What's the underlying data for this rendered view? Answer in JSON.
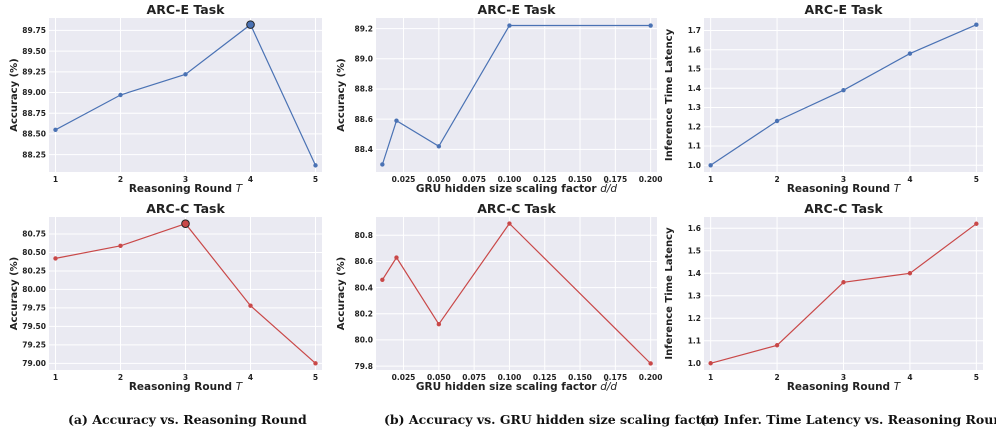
{
  "colors": {
    "blue": "#4a72b4",
    "red": "#c94848",
    "panel_bg": "#eaeaf2",
    "grid": "#ffffff"
  },
  "captions": [
    "(a)  Accuracy vs. Reasoning Round",
    "(b)  Accuracy vs. GRU hidden size scaling factor",
    "(c)  Infer. Time Latency vs. Reasoning Round"
  ],
  "chart_data": [
    {
      "id": "a-top",
      "type": "line",
      "title": "ARC-E Task",
      "xlabel": "Reasoning Round T",
      "ylabel": "Accuracy (%)",
      "x": [
        1,
        2,
        3,
        4,
        5
      ],
      "values": [
        88.55,
        88.97,
        89.22,
        89.82,
        88.12
      ],
      "xlim": [
        0.9,
        5.1
      ],
      "ylim": [
        88.04,
        89.9
      ],
      "xticks": [
        "1",
        "2",
        "3",
        "4",
        "5"
      ],
      "yticks": [
        "88.25",
        "88.50",
        "88.75",
        "89.00",
        "89.25",
        "89.50",
        "89.75"
      ],
      "highlight_index": 3,
      "color": "blue"
    },
    {
      "id": "b-top",
      "type": "line",
      "title": "ARC-E Task",
      "xlabel": "GRU hidden size scaling factor d̃/d",
      "ylabel": "Accuracy (%)",
      "x": [
        0.01,
        0.02,
        0.05,
        0.1,
        0.2
      ],
      "values": [
        88.3,
        88.59,
        88.42,
        89.22,
        89.22
      ],
      "xlim": [
        0.0055,
        0.2045
      ],
      "ylim": [
        88.25,
        89.27
      ],
      "xticks": [
        "0.025",
        "0.050",
        "0.075",
        "0.100",
        "0.125",
        "0.150",
        "0.175",
        "0.200"
      ],
      "yticks": [
        "88.4",
        "88.6",
        "88.8",
        "89.0",
        "89.2"
      ],
      "color": "blue"
    },
    {
      "id": "c-top",
      "type": "line",
      "title": "ARC-E Task",
      "xlabel": "Reasoning Round T",
      "ylabel": "Inference Time Latency",
      "x": [
        1,
        2,
        3,
        4,
        5
      ],
      "values": [
        1.0,
        1.23,
        1.39,
        1.58,
        1.73
      ],
      "xlim": [
        0.9,
        5.1
      ],
      "ylim": [
        0.965,
        1.765
      ],
      "xticks": [
        "1",
        "2",
        "3",
        "4",
        "5"
      ],
      "yticks": [
        "1.0",
        "1.1",
        "1.2",
        "1.3",
        "1.4",
        "1.5",
        "1.6",
        "1.7"
      ],
      "color": "blue"
    },
    {
      "id": "a-bot",
      "type": "line",
      "title": "ARC-C Task",
      "xlabel": "Reasoning Round T",
      "ylabel": "Accuracy (%)",
      "x": [
        1,
        2,
        3,
        4,
        5
      ],
      "values": [
        80.42,
        80.59,
        80.89,
        79.78,
        79.0
      ],
      "xlim": [
        0.9,
        5.1
      ],
      "ylim": [
        78.91,
        80.98
      ],
      "xticks": [
        "1",
        "2",
        "3",
        "4",
        "5"
      ],
      "yticks": [
        "79.00",
        "79.25",
        "79.50",
        "79.75",
        "80.00",
        "80.25",
        "80.50",
        "80.75"
      ],
      "highlight_index": 2,
      "color": "red"
    },
    {
      "id": "b-bot",
      "type": "line",
      "title": "ARC-C Task",
      "xlabel": "GRU hidden size scaling factor d̃/d",
      "ylabel": "Accuracy (%)",
      "x": [
        0.01,
        0.02,
        0.05,
        0.1,
        0.2
      ],
      "values": [
        80.46,
        80.63,
        80.12,
        80.89,
        79.82
      ],
      "xlim": [
        0.0055,
        0.2045
      ],
      "ylim": [
        79.77,
        80.94
      ],
      "xticks": [
        "0.025",
        "0.050",
        "0.075",
        "0.100",
        "0.125",
        "0.150",
        "0.175",
        "0.200"
      ],
      "yticks": [
        "79.8",
        "80.0",
        "80.2",
        "80.4",
        "80.6",
        "80.8"
      ],
      "color": "red"
    },
    {
      "id": "c-bot",
      "type": "line",
      "title": "ARC-C Task",
      "xlabel": "Reasoning Round T",
      "ylabel": "Inference Time Latency",
      "x": [
        1,
        2,
        3,
        4,
        5
      ],
      "values": [
        1.0,
        1.08,
        1.36,
        1.4,
        1.62
      ],
      "xlim": [
        0.9,
        5.1
      ],
      "ylim": [
        0.97,
        1.65
      ],
      "xticks": [
        "1",
        "2",
        "3",
        "4",
        "5"
      ],
      "yticks": [
        "1.0",
        "1.1",
        "1.2",
        "1.3",
        "1.4",
        "1.5",
        "1.6"
      ],
      "color": "red"
    }
  ]
}
